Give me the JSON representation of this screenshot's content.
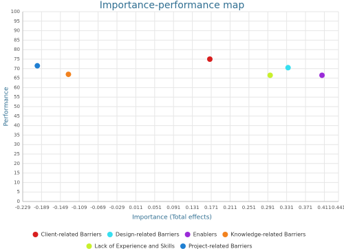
{
  "chart_data": {
    "type": "scatter",
    "title": "Importance-performance map",
    "x_label": "Importance (Total effects)",
    "y_label": "Performance",
    "xlim": [
      -0.229,
      0.441
    ],
    "xticks": [
      -0.229,
      -0.189,
      -0.149,
      -0.109,
      -0.069,
      -0.029,
      0.011,
      0.051,
      0.091,
      0.131,
      0.171,
      0.211,
      0.251,
      0.291,
      0.331,
      0.371,
      0.411,
      0.441
    ],
    "ylim": [
      0,
      100
    ],
    "yticks": [
      0,
      5,
      10,
      15,
      20,
      25,
      30,
      35,
      40,
      45,
      50,
      55,
      60,
      65,
      70,
      75,
      80,
      85,
      90,
      95,
      100
    ],
    "grid": true,
    "legend": "bottom",
    "series": [
      {
        "name": "Client-related Barriers",
        "color": "#d81e1e",
        "x": [
          0.168
        ],
        "values": [
          75
        ]
      },
      {
        "name": "Design-related Barriers",
        "color": "#36dff0",
        "x": [
          0.334
        ],
        "values": [
          70.5
        ]
      },
      {
        "name": "Enablers",
        "color": "#9a2bd8",
        "x": [
          0.406
        ],
        "values": [
          66.5
        ]
      },
      {
        "name": "Knowledge-related Barriers",
        "color": "#f2821e",
        "x": [
          -0.132
        ],
        "values": [
          67
        ]
      },
      {
        "name": "Lack of Experience and Skills",
        "color": "#c8f02c",
        "x": [
          0.296
        ],
        "values": [
          66.5
        ]
      },
      {
        "name": "Project-related Barriers",
        "color": "#1f7fd2",
        "x": [
          -0.198
        ],
        "values": [
          71.5
        ]
      }
    ]
  }
}
